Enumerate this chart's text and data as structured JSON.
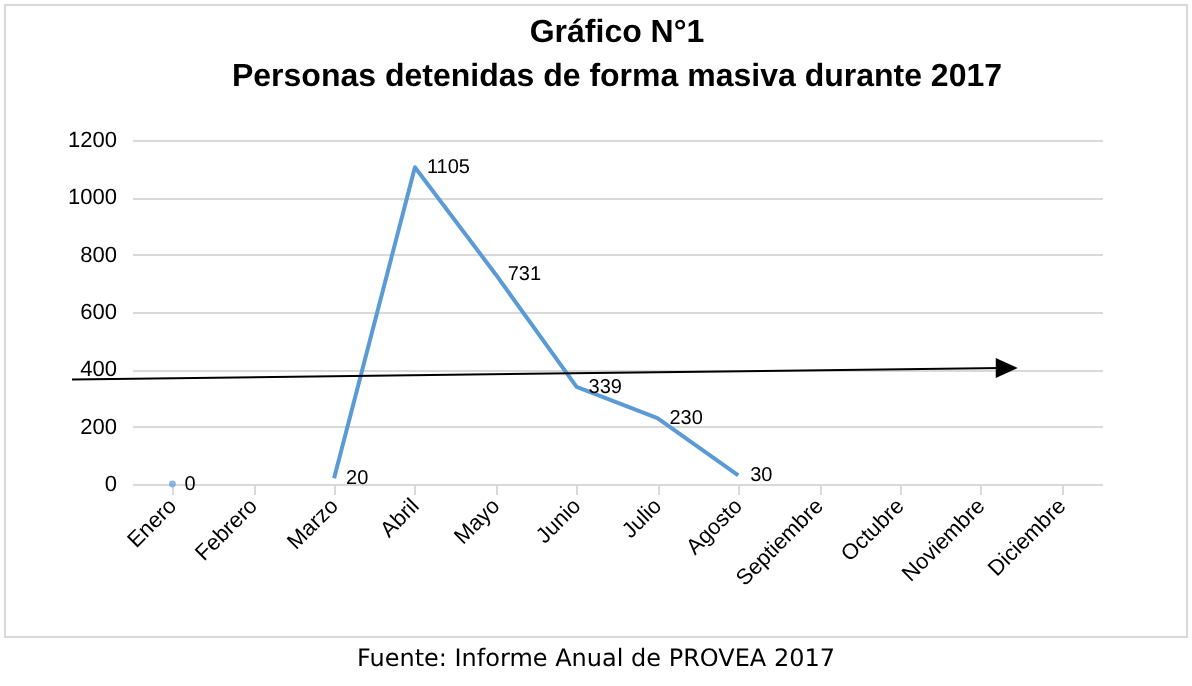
{
  "chart_data": {
    "type": "line",
    "title": [
      "Gráfico N°1",
      "Personas detenidas de forma masiva durante 2017"
    ],
    "categories": [
      "Enero",
      "Febrero",
      "Marzo",
      "Abril",
      "Mayo",
      "Junio",
      "Julio",
      "Agosto",
      "Septiembre",
      "Octubre",
      "Noviembre",
      "Diciembre"
    ],
    "series": [
      {
        "color": "#5b9bd5",
        "values": [
          0,
          null,
          20,
          1105,
          731,
          339,
          230,
          30,
          null,
          null,
          null,
          null
        ]
      }
    ],
    "ylim": [
      0,
      1200
    ],
    "yticks": [
      0,
      200,
      400,
      600,
      800,
      1000,
      1200
    ],
    "grid": "y",
    "data_labels": true,
    "legend": false,
    "marker": "none",
    "annotations": [
      "Fuente: Informe Anual de PROVEA 2017"
    ]
  }
}
